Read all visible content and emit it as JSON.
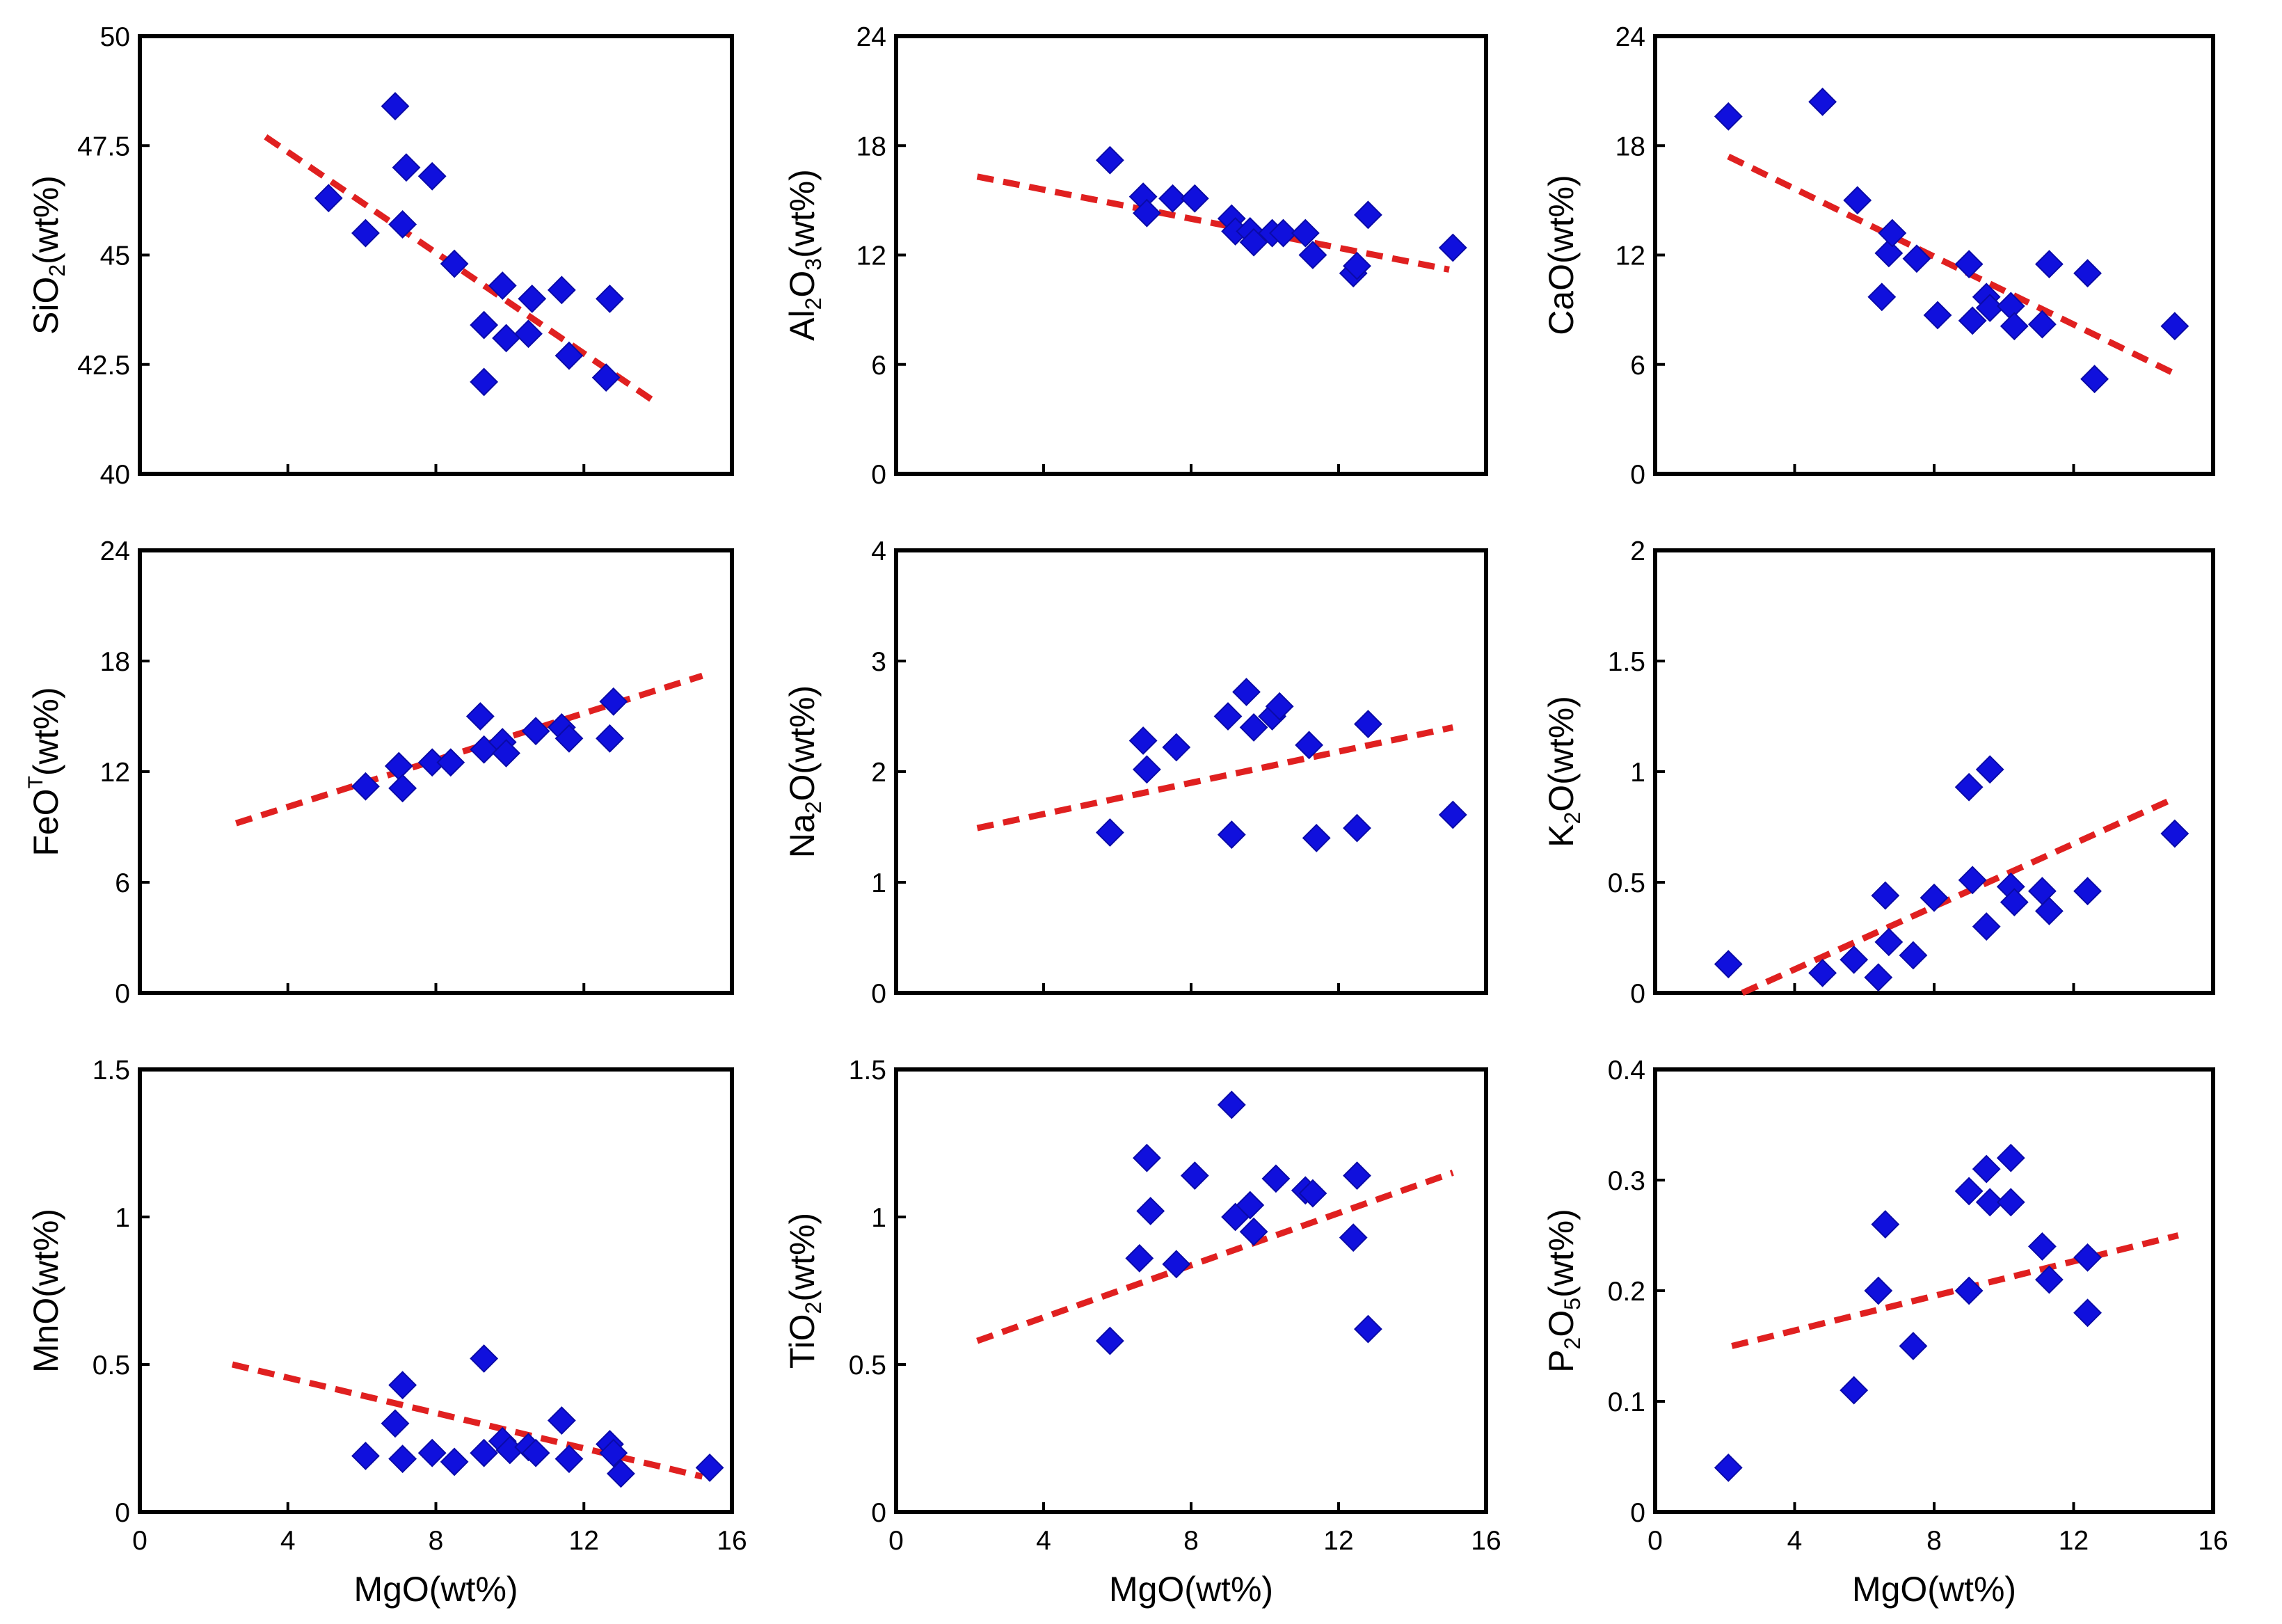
{
  "colors": {
    "marker": "#1010dd",
    "marker_edge": "#0a0aa8",
    "trend": "#e02020"
  },
  "chart_data": [
    {
      "type": "scatter",
      "id": "sio2",
      "title": "",
      "xlabel": "",
      "ylabel": "SiO2(wt%)",
      "ylabel_parts": [
        {
          "t": "SiO"
        },
        {
          "t": "2",
          "sub": true
        },
        {
          "t": "(wt%)"
        }
      ],
      "xlim": [
        0,
        16
      ],
      "ylim": [
        40,
        50
      ],
      "xticks": [],
      "xticks_pos": [
        4,
        8,
        12
      ],
      "yticks": [
        40,
        42.5,
        45,
        47.5,
        50
      ],
      "yticklabels": [
        "40",
        "42.5",
        "45",
        "47.5",
        "50"
      ],
      "points": [
        [
          5.1,
          46.3
        ],
        [
          6.1,
          45.5
        ],
        [
          6.9,
          48.4
        ],
        [
          7.1,
          45.7
        ],
        [
          7.2,
          47.0
        ],
        [
          7.9,
          46.8
        ],
        [
          8.5,
          44.8
        ],
        [
          9.3,
          43.4
        ],
        [
          9.3,
          42.1
        ],
        [
          9.8,
          44.3
        ],
        [
          9.9,
          43.1
        ],
        [
          10.5,
          43.2
        ],
        [
          10.6,
          44.0
        ],
        [
          11.4,
          44.2
        ],
        [
          11.6,
          42.7
        ],
        [
          12.6,
          42.2
        ],
        [
          12.7,
          44.0
        ]
      ],
      "trend": [
        [
          3.4,
          47.7
        ],
        [
          14.0,
          41.6
        ]
      ]
    },
    {
      "type": "scatter",
      "id": "al2o3",
      "title": "",
      "xlabel": "",
      "ylabel": "Al2O3(wt%)",
      "ylabel_parts": [
        {
          "t": "Al"
        },
        {
          "t": "2",
          "sub": true
        },
        {
          "t": "O"
        },
        {
          "t": "3",
          "sub": true
        },
        {
          "t": "(wt%)"
        }
      ],
      "xlim": [
        0,
        16
      ],
      "ylim": [
        0,
        24
      ],
      "xticks": [],
      "xticks_pos": [
        4,
        8,
        12
      ],
      "yticks": [
        0,
        6,
        12,
        18,
        24
      ],
      "yticklabels": [
        "0",
        "6",
        "12",
        "18",
        "24"
      ],
      "points": [
        [
          5.8,
          17.2
        ],
        [
          6.7,
          15.2
        ],
        [
          6.8,
          14.3
        ],
        [
          7.5,
          15.1
        ],
        [
          8.1,
          15.1
        ],
        [
          9.1,
          14.0
        ],
        [
          9.2,
          13.3
        ],
        [
          9.6,
          13.3
        ],
        [
          9.7,
          12.7
        ],
        [
          10.2,
          13.2
        ],
        [
          10.5,
          13.2
        ],
        [
          11.1,
          13.2
        ],
        [
          11.3,
          12.0
        ],
        [
          12.4,
          11.0
        ],
        [
          12.5,
          11.4
        ],
        [
          12.8,
          14.2
        ],
        [
          15.1,
          12.4
        ]
      ],
      "trend": [
        [
          2.2,
          16.3
        ],
        [
          15.0,
          11.2
        ]
      ]
    },
    {
      "type": "scatter",
      "id": "cao",
      "title": "",
      "xlabel": "",
      "ylabel": "CaO(wt%)",
      "ylabel_parts": [
        {
          "t": "CaO(wt%)"
        }
      ],
      "xlim": [
        0,
        16
      ],
      "ylim": [
        0,
        24
      ],
      "xticks": [],
      "xticks_pos": [
        4,
        8,
        12
      ],
      "yticks": [
        0,
        6,
        12,
        18,
        24
      ],
      "yticklabels": [
        "0",
        "6",
        "12",
        "18",
        "24"
      ],
      "points": [
        [
          2.1,
          19.6
        ],
        [
          4.8,
          20.4
        ],
        [
          5.8,
          15.0
        ],
        [
          6.5,
          9.7
        ],
        [
          6.7,
          12.1
        ],
        [
          6.8,
          13.2
        ],
        [
          7.5,
          11.8
        ],
        [
          8.1,
          8.7
        ],
        [
          9.0,
          11.5
        ],
        [
          9.1,
          8.4
        ],
        [
          9.5,
          9.7
        ],
        [
          9.6,
          9.1
        ],
        [
          10.2,
          9.2
        ],
        [
          10.3,
          8.1
        ],
        [
          11.1,
          8.2
        ],
        [
          11.3,
          11.5
        ],
        [
          12.4,
          11.0
        ],
        [
          12.6,
          5.2
        ],
        [
          14.9,
          8.1
        ]
      ],
      "trend": [
        [
          2.1,
          17.4
        ],
        [
          15.0,
          5.4
        ]
      ]
    },
    {
      "type": "scatter",
      "id": "feot",
      "title": "",
      "xlabel": "",
      "ylabel": "FeOT(wt%)",
      "ylabel_parts": [
        {
          "t": "FeO"
        },
        {
          "t": "T",
          "sup": true
        },
        {
          "t": "(wt%)"
        }
      ],
      "xlim": [
        0,
        16
      ],
      "ylim": [
        0,
        24
      ],
      "xticks": [],
      "xticks_pos": [
        4,
        8,
        12
      ],
      "yticks": [
        0,
        6,
        12,
        18,
        24
      ],
      "yticklabels": [
        "0",
        "6",
        "12",
        "18",
        "24"
      ],
      "points": [
        [
          6.1,
          11.2
        ],
        [
          7.0,
          12.3
        ],
        [
          7.1,
          11.1
        ],
        [
          7.9,
          12.5
        ],
        [
          8.4,
          12.5
        ],
        [
          9.2,
          15.0
        ],
        [
          9.3,
          13.2
        ],
        [
          9.8,
          13.6
        ],
        [
          9.9,
          13.0
        ],
        [
          10.7,
          14.2
        ],
        [
          11.4,
          14.4
        ],
        [
          11.6,
          13.8
        ],
        [
          12.7,
          13.8
        ],
        [
          12.8,
          15.8
        ]
      ],
      "trend": [
        [
          2.6,
          9.2
        ],
        [
          15.2,
          17.2
        ]
      ]
    },
    {
      "type": "scatter",
      "id": "na2o",
      "title": "",
      "xlabel": "",
      "ylabel": "Na2O(wt%)",
      "ylabel_parts": [
        {
          "t": "Na"
        },
        {
          "t": "2",
          "sub": true
        },
        {
          "t": "O(wt%)"
        }
      ],
      "xlim": [
        0,
        16
      ],
      "ylim": [
        0,
        4
      ],
      "xticks": [],
      "xticks_pos": [
        4,
        8,
        12
      ],
      "yticks": [
        0,
        1,
        2,
        3,
        4
      ],
      "yticklabels": [
        "0",
        "1",
        "2",
        "3",
        "4"
      ],
      "points": [
        [
          5.8,
          1.45
        ],
        [
          6.7,
          2.28
        ],
        [
          6.8,
          2.02
        ],
        [
          7.6,
          2.22
        ],
        [
          9.0,
          2.5
        ],
        [
          9.1,
          1.43
        ],
        [
          9.5,
          2.72
        ],
        [
          9.7,
          2.4
        ],
        [
          10.2,
          2.5
        ],
        [
          10.4,
          2.59
        ],
        [
          11.2,
          2.24
        ],
        [
          11.4,
          1.4
        ],
        [
          12.5,
          1.49
        ],
        [
          12.8,
          2.43
        ],
        [
          15.1,
          1.61
        ]
      ],
      "trend": [
        [
          2.2,
          1.49
        ],
        [
          15.1,
          2.4
        ]
      ]
    },
    {
      "type": "scatter",
      "id": "k2o",
      "title": "",
      "xlabel": "",
      "ylabel": "K2O(wt%)",
      "ylabel_parts": [
        {
          "t": "K"
        },
        {
          "t": "2",
          "sub": true
        },
        {
          "t": "O(wt%)"
        }
      ],
      "xlim": [
        0,
        16
      ],
      "ylim": [
        0,
        2
      ],
      "xticks": [],
      "xticks_pos": [
        4,
        8,
        12
      ],
      "yticks": [
        0,
        0.5,
        1,
        1.5,
        2
      ],
      "yticklabels": [
        "0",
        "0.5",
        "1",
        "1.5",
        "2"
      ],
      "points": [
        [
          2.1,
          0.13
        ],
        [
          4.8,
          0.09
        ],
        [
          5.7,
          0.15
        ],
        [
          6.4,
          0.07
        ],
        [
          6.6,
          0.44
        ],
        [
          6.7,
          0.23
        ],
        [
          7.4,
          0.17
        ],
        [
          8.0,
          0.43
        ],
        [
          9.0,
          0.93
        ],
        [
          9.1,
          0.51
        ],
        [
          9.5,
          0.3
        ],
        [
          9.6,
          1.01
        ],
        [
          10.2,
          0.48
        ],
        [
          10.3,
          0.41
        ],
        [
          11.1,
          0.46
        ],
        [
          11.3,
          0.37
        ],
        [
          12.4,
          0.46
        ],
        [
          14.9,
          0.72
        ]
      ],
      "trend": [
        [
          2.5,
          0.0
        ],
        [
          14.9,
          0.88
        ]
      ]
    },
    {
      "type": "scatter",
      "id": "mno",
      "title": "",
      "xlabel": "MgO(wt%)",
      "ylabel": "MnO(wt%)",
      "ylabel_parts": [
        {
          "t": "MnO(wt%)"
        }
      ],
      "xlim": [
        0,
        16
      ],
      "ylim": [
        0,
        1.5
      ],
      "xticks": [
        0,
        4,
        8,
        12,
        16
      ],
      "xticklabels": [
        "0",
        "4",
        "8",
        "12",
        "16"
      ],
      "yticks": [
        0,
        0.5,
        1,
        1.5
      ],
      "yticklabels": [
        "0",
        "0.5",
        "1",
        "1.5"
      ],
      "points": [
        [
          6.1,
          0.19
        ],
        [
          6.9,
          0.3
        ],
        [
          7.1,
          0.43
        ],
        [
          7.1,
          0.18
        ],
        [
          7.9,
          0.2
        ],
        [
          8.5,
          0.17
        ],
        [
          9.3,
          0.52
        ],
        [
          9.3,
          0.2
        ],
        [
          9.8,
          0.24
        ],
        [
          10.0,
          0.21
        ],
        [
          10.5,
          0.22
        ],
        [
          10.7,
          0.2
        ],
        [
          11.4,
          0.31
        ],
        [
          11.6,
          0.18
        ],
        [
          12.7,
          0.23
        ],
        [
          12.8,
          0.2
        ],
        [
          13.0,
          0.13
        ],
        [
          15.4,
          0.15
        ]
      ],
      "trend": [
        [
          2.5,
          0.5
        ],
        [
          15.2,
          0.12
        ]
      ]
    },
    {
      "type": "scatter",
      "id": "tio2",
      "title": "",
      "xlabel": "MgO(wt%)",
      "ylabel": "TiO2(wt%)",
      "ylabel_parts": [
        {
          "t": "TiO"
        },
        {
          "t": "2",
          "sub": true
        },
        {
          "t": "(wt%)"
        }
      ],
      "xlim": [
        0,
        16
      ],
      "ylim": [
        0,
        1.5
      ],
      "xticks": [
        0,
        4,
        8,
        12,
        16
      ],
      "xticklabels": [
        "0",
        "4",
        "8",
        "12",
        "16"
      ],
      "yticks": [
        0,
        0.5,
        1,
        1.5
      ],
      "yticklabels": [
        "0",
        "0.5",
        "1",
        "1.5"
      ],
      "points": [
        [
          5.8,
          0.58
        ],
        [
          6.6,
          0.86
        ],
        [
          6.8,
          1.2
        ],
        [
          6.9,
          1.02
        ],
        [
          7.6,
          0.84
        ],
        [
          8.1,
          1.14
        ],
        [
          9.1,
          1.38
        ],
        [
          9.2,
          1.0
        ],
        [
          9.6,
          1.04
        ],
        [
          9.7,
          0.95
        ],
        [
          10.3,
          1.13
        ],
        [
          11.1,
          1.09
        ],
        [
          11.3,
          1.08
        ],
        [
          12.4,
          0.93
        ],
        [
          12.5,
          1.14
        ],
        [
          12.8,
          0.62
        ]
      ],
      "trend": [
        [
          2.2,
          0.58
        ],
        [
          15.1,
          1.15
        ]
      ]
    },
    {
      "type": "scatter",
      "id": "p2o5",
      "title": "",
      "xlabel": "MgO(wt%)",
      "ylabel": "P2O5(wt%)",
      "ylabel_parts": [
        {
          "t": "P"
        },
        {
          "t": "2",
          "sub": true
        },
        {
          "t": "O"
        },
        {
          "t": "5",
          "sub": true
        },
        {
          "t": "(wt%)"
        }
      ],
      "xlim": [
        0,
        16
      ],
      "ylim": [
        0,
        0.4
      ],
      "xticks": [
        0,
        4,
        8,
        12,
        16
      ],
      "xticklabels": [
        "0",
        "4",
        "8",
        "12",
        "16"
      ],
      "yticks": [
        0,
        0.1,
        0.2,
        0.3,
        0.4
      ],
      "yticklabels": [
        "0",
        "0.1",
        "0.2",
        "0.3",
        "0.4"
      ],
      "points": [
        [
          2.1,
          0.04
        ],
        [
          5.7,
          0.11
        ],
        [
          6.4,
          0.2
        ],
        [
          6.6,
          0.26
        ],
        [
          7.4,
          0.15
        ],
        [
          9.0,
          0.29
        ],
        [
          9.0,
          0.2
        ],
        [
          9.5,
          0.31
        ],
        [
          9.6,
          0.28
        ],
        [
          10.2,
          0.32
        ],
        [
          10.2,
          0.28
        ],
        [
          11.1,
          0.24
        ],
        [
          11.3,
          0.21
        ],
        [
          12.4,
          0.23
        ],
        [
          12.4,
          0.18
        ]
      ],
      "trend": [
        [
          2.2,
          0.15
        ],
        [
          15.0,
          0.25
        ]
      ]
    }
  ]
}
